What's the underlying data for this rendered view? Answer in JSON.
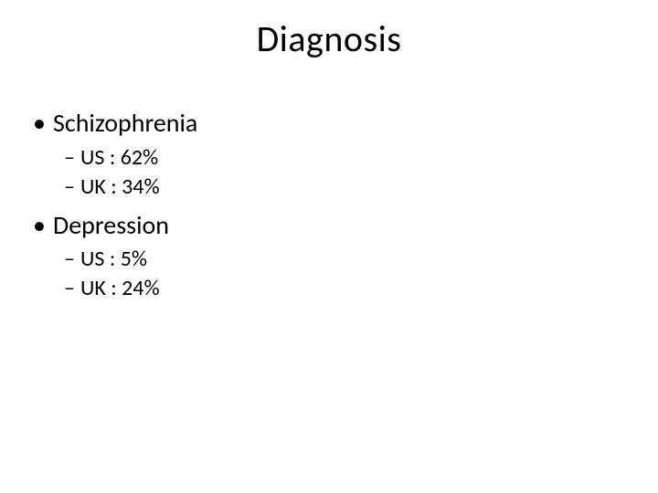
{
  "title": "Diagnosis",
  "bullets": {
    "lvl1_glyph": "•",
    "lvl2_glyph": "–"
  },
  "items": [
    {
      "label": "Schizophrenia",
      "sub": [
        {
          "text": "US : 62%"
        },
        {
          "text": "UK : 34%"
        }
      ]
    },
    {
      "label": "Depression",
      "sub": [
        {
          "text": "US : 5%"
        },
        {
          "text": "UK : 24%"
        }
      ]
    }
  ],
  "style": {
    "background_color": "#ffffff",
    "text_color": "#000000",
    "title_fontsize": 40,
    "lvl1_fontsize": 28,
    "lvl2_fontsize": 24,
    "font_family": "Calibri"
  }
}
